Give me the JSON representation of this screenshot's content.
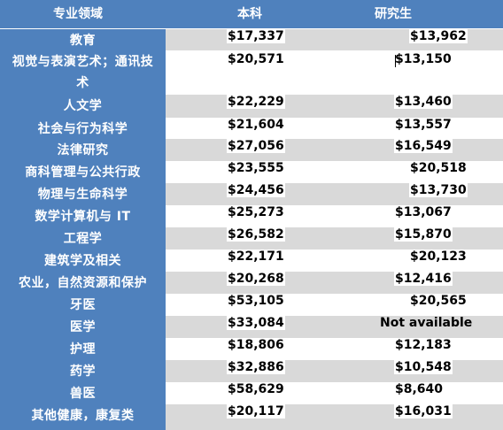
{
  "header": {
    "field": "专业领域",
    "undergrad": "本科",
    "graduate": "研究生"
  },
  "rows": [
    {
      "field": "教育",
      "undergrad": "$17,337",
      "graduate": "$13,962"
    },
    {
      "field": "视觉与表演艺术；通讯技术",
      "field_line1": "视觉与表演艺术；通讯技",
      "field_line2": "术",
      "undergrad": "$20,571",
      "graduate": "$13,150"
    },
    {
      "field": "人文学",
      "undergrad": "$22,229",
      "graduate": "$13,460"
    },
    {
      "field": "社会与行为科学",
      "undergrad": "$21,604",
      "graduate": "$13,557"
    },
    {
      "field": "法律研究",
      "undergrad": "$27,056",
      "graduate": "$16,549"
    },
    {
      "field": "商科管理与公共行政",
      "undergrad": "$23,555",
      "graduate": "$20,518"
    },
    {
      "field": "物理与生命科学",
      "undergrad": "$24,456",
      "graduate": "$13,730"
    },
    {
      "field": "数学计算机与 IT",
      "undergrad": "$25,273",
      "graduate": "$13,067"
    },
    {
      "field": "工程学",
      "undergrad": "$26,582",
      "graduate": "$15,870"
    },
    {
      "field": "建筑学及相关",
      "undergrad": "$22,171",
      "graduate": "$20,123"
    },
    {
      "field": "农业，自然资源和保护",
      "undergrad": "$20,268",
      "graduate": "$12,416"
    },
    {
      "field": "牙医",
      "undergrad": "$53,105",
      "graduate": "$20,565"
    },
    {
      "field": "医学",
      "undergrad": "$33,084",
      "graduate": "Not available"
    },
    {
      "field": "护理",
      "undergrad": "$18,806",
      "graduate": "$12,183"
    },
    {
      "field": "药学",
      "undergrad": "$32,886",
      "graduate": "$10,548"
    },
    {
      "field": "兽医",
      "undergrad": "$58,629",
      "graduate": "$8,640"
    },
    {
      "field": "其他健康，康复类",
      "undergrad": "$20,117",
      "graduate": "$16,031"
    }
  ]
}
